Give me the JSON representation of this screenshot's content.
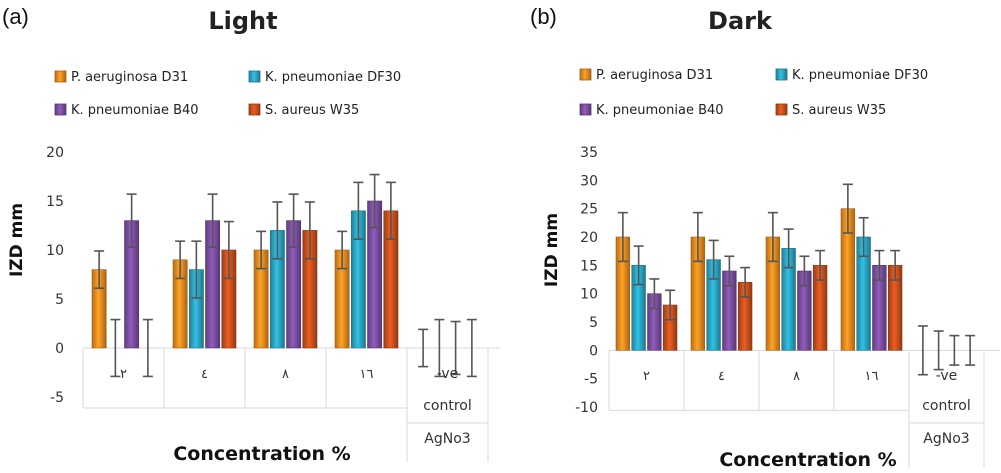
{
  "colors": {
    "P. aeruginosa D31": "#ee8a1e",
    "K. pneumoniae DF30": "#2aa4c2",
    "K. pneumoniae B40": "#7a4ea0",
    "S. aureus W35": "#c8501c",
    "grid": "#d9d9d9",
    "errorbar": "#555555"
  },
  "chart_data": [
    {
      "type": "bar",
      "panel_letter": "(a)",
      "title": "Light",
      "xlabel": "Concentration %",
      "ylabel": "IZD mm",
      "ylim": [
        -5,
        20
      ],
      "yticks": [
        -5,
        0,
        5,
        10,
        15,
        20
      ],
      "categories": [
        "٢",
        "٤",
        "٨",
        "١٦",
        "-ve control"
      ],
      "sub_label": "AgNo3",
      "legend_position": "top",
      "grid": false,
      "series": [
        {
          "name": "P. aeruginosa D31",
          "values": [
            8,
            9,
            10,
            10,
            0
          ],
          "errors": [
            1.9,
            1.9,
            1.9,
            1.9,
            1.9
          ]
        },
        {
          "name": "K. pneumoniae DF30",
          "values": [
            0,
            8,
            12,
            14,
            0
          ],
          "errors": [
            2.9,
            2.9,
            2.9,
            2.9,
            2.9
          ]
        },
        {
          "name": "K. pneumoniae B40",
          "values": [
            13,
            13,
            13,
            15,
            0
          ],
          "errors": [
            2.7,
            2.7,
            2.7,
            2.7,
            2.7
          ]
        },
        {
          "name": "S. aureus W35",
          "values": [
            0,
            10,
            12,
            14,
            0
          ],
          "errors": [
            2.9,
            2.9,
            2.9,
            2.9,
            2.9
          ]
        }
      ]
    },
    {
      "type": "bar",
      "panel_letter": "(b)",
      "title": "Dark",
      "xlabel": "Concentration %",
      "ylabel": "IZD mm",
      "ylim": [
        -10,
        35
      ],
      "yticks": [
        -10,
        -5,
        0,
        5,
        10,
        15,
        20,
        25,
        30,
        35
      ],
      "categories": [
        "٢",
        "٤",
        "٨",
        "١٦",
        "-ve control"
      ],
      "sub_label": "AgNo3",
      "legend_position": "top",
      "grid": false,
      "series": [
        {
          "name": "P. aeruginosa D31",
          "values": [
            20,
            20,
            20,
            25,
            0
          ],
          "errors": [
            4.3,
            4.3,
            4.3,
            4.3,
            4.3
          ]
        },
        {
          "name": "K. pneumoniae DF30",
          "values": [
            15,
            16,
            18,
            20,
            0
          ],
          "errors": [
            3.4,
            3.4,
            3.4,
            3.4,
            3.4
          ]
        },
        {
          "name": "K. pneumoniae B40",
          "values": [
            10,
            14,
            14,
            15,
            0
          ],
          "errors": [
            2.6,
            2.6,
            2.6,
            2.6,
            2.6
          ]
        },
        {
          "name": "S. aureus W35",
          "values": [
            8,
            12,
            15,
            15,
            0
          ],
          "errors": [
            2.6,
            2.6,
            2.6,
            2.6,
            2.6
          ]
        }
      ]
    }
  ]
}
